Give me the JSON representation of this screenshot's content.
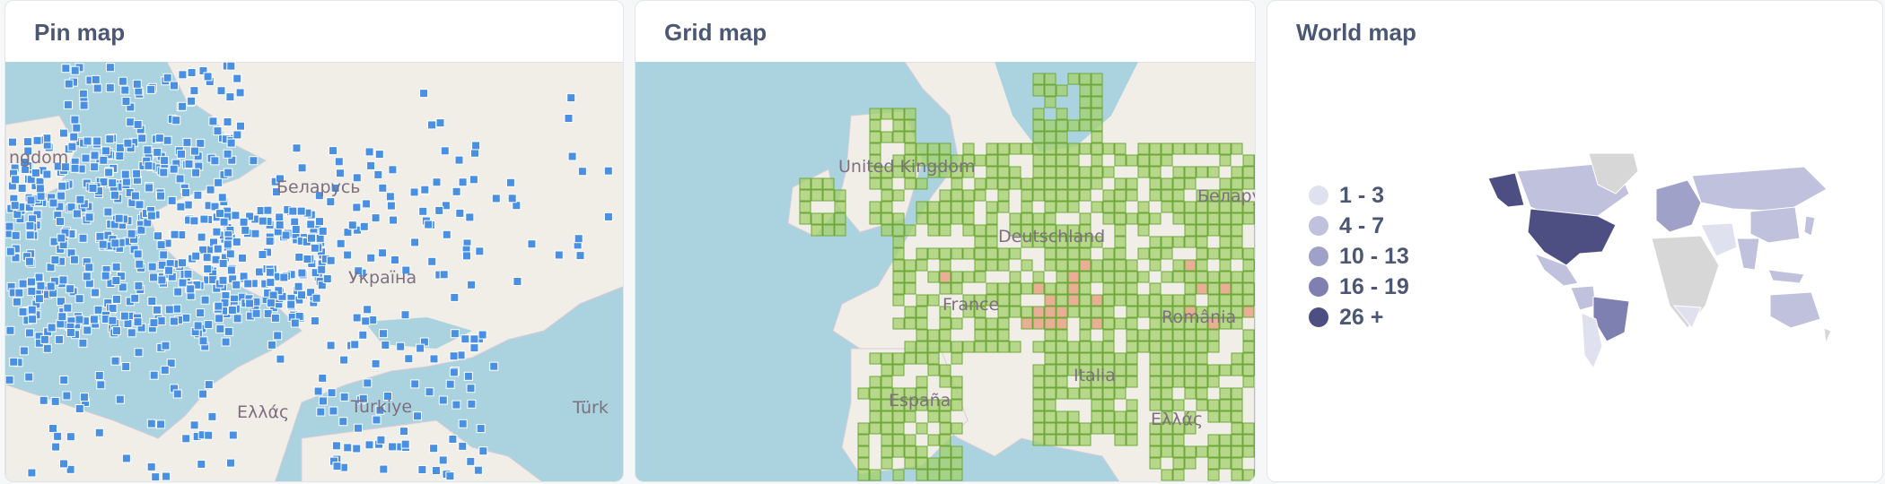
{
  "cards": {
    "pin": {
      "title": "Pin map",
      "labels": [
        "ngdom",
        "Беларусь",
        "Україна",
        "Ελλάς",
        "Türkiye",
        "Türk"
      ],
      "colors": {
        "water": "#aad3df",
        "land": "#f1eee8",
        "pin": "#4a90e2"
      }
    },
    "grid": {
      "title": "Grid map",
      "labels": [
        "United Kingdom",
        "Deutschland",
        "France",
        "România",
        "Italia",
        "España",
        "Ελλάς",
        "Белару"
      ],
      "colors": {
        "water": "#aad3df",
        "land": "#f1eee8",
        "cell": "#a3d06b",
        "cell_hot": "#e69a7a"
      }
    },
    "world": {
      "title": "World map",
      "legend": [
        {
          "label": "1 - 3",
          "color": "#e0e1ef"
        },
        {
          "label": "4 - 7",
          "color": "#c0c1dd"
        },
        {
          "label": "10 - 13",
          "color": "#a0a1c9"
        },
        {
          "label": "16 - 19",
          "color": "#7f80b2"
        },
        {
          "label": "26 +",
          "color": "#4d4f82"
        }
      ],
      "colors": {
        "no_data": "#d7d7d7"
      }
    }
  }
}
